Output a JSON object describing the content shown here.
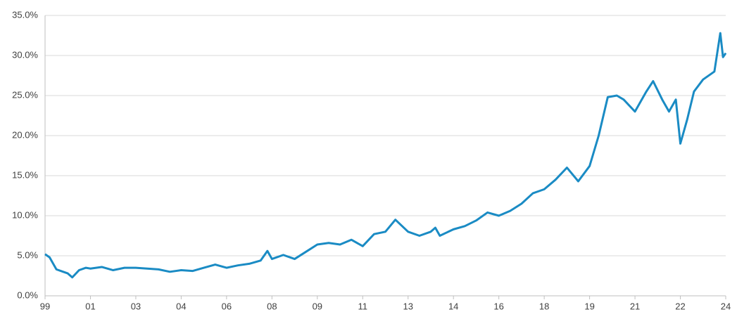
{
  "chart_data": {
    "type": "line",
    "x": [
      0,
      0.1,
      0.25,
      0.4,
      0.5,
      0.6,
      0.75,
      0.9,
      1,
      1.25,
      1.5,
      1.75,
      2,
      2.25,
      2.5,
      2.75,
      3,
      3.25,
      3.5,
      3.75,
      4,
      4.25,
      4.5,
      4.75,
      4.9,
      5,
      5.25,
      5.5,
      5.75,
      6,
      6.25,
      6.5,
      6.75,
      7,
      7.25,
      7.5,
      7.72,
      8,
      8.25,
      8.5,
      8.6,
      8.7,
      9,
      9.25,
      9.5,
      9.75,
      10,
      10.25,
      10.5,
      10.75,
      11,
      11.25,
      11.5,
      11.75,
      12,
      12.2,
      12.4,
      12.6,
      12.75,
      13,
      13.25,
      13.4,
      13.6,
      13.75,
      13.9,
      14,
      14.15,
      14.3,
      14.5,
      14.75,
      14.88,
      14.94,
      15
    ],
    "series": [
      {
        "color": "#1a8bc4",
        "values": [
          5.2,
          4.8,
          3.3,
          3.0,
          2.8,
          2.3,
          3.2,
          3.5,
          3.4,
          3.6,
          3.2,
          3.5,
          3.5,
          3.4,
          3.3,
          3.0,
          3.2,
          3.1,
          3.5,
          3.9,
          3.5,
          3.8,
          4.0,
          4.4,
          5.6,
          4.6,
          5.1,
          4.6,
          5.5,
          6.4,
          6.6,
          6.4,
          7.0,
          6.2,
          7.7,
          8.0,
          9.5,
          8.0,
          7.5,
          8.0,
          8.5,
          7.5,
          8.3,
          8.7,
          9.4,
          10.4,
          10.0,
          10.6,
          11.5,
          12.8,
          13.3,
          14.5,
          16.0,
          14.3,
          16.2,
          20.0,
          24.8,
          25.0,
          24.5,
          23.0,
          25.5,
          26.8,
          24.5,
          23.0,
          24.5,
          19.0,
          22.0,
          25.5,
          27.0,
          28.0,
          32.8,
          29.8,
          30.3
        ]
      }
    ],
    "xlim": [
      0,
      15
    ],
    "xticks": [
      {
        "value": 0,
        "label": "99"
      },
      {
        "value": 1,
        "label": "01"
      },
      {
        "value": 2,
        "label": "03"
      },
      {
        "value": 3,
        "label": "04"
      },
      {
        "value": 4,
        "label": "06"
      },
      {
        "value": 5,
        "label": "08"
      },
      {
        "value": 6,
        "label": "09"
      },
      {
        "value": 7,
        "label": "11"
      },
      {
        "value": 8,
        "label": "13"
      },
      {
        "value": 9,
        "label": "14"
      },
      {
        "value": 10,
        "label": "16"
      },
      {
        "value": 11,
        "label": "18"
      },
      {
        "value": 12,
        "label": "19"
      },
      {
        "value": 13,
        "label": "21"
      },
      {
        "value": 14,
        "label": "22"
      },
      {
        "value": 15,
        "label": "24"
      }
    ],
    "ylim": [
      0,
      35
    ],
    "yticks": [
      {
        "value": 0,
        "label": "0.0%"
      },
      {
        "value": 5,
        "label": "5.0%"
      },
      {
        "value": 10,
        "label": "10.0%"
      },
      {
        "value": 15,
        "label": "15.0%"
      },
      {
        "value": 20,
        "label": "20.0%"
      },
      {
        "value": 25,
        "label": "25.0%"
      },
      {
        "value": 30,
        "label": "30.0%"
      },
      {
        "value": 35,
        "label": "35.0%"
      }
    ],
    "grid": true
  }
}
